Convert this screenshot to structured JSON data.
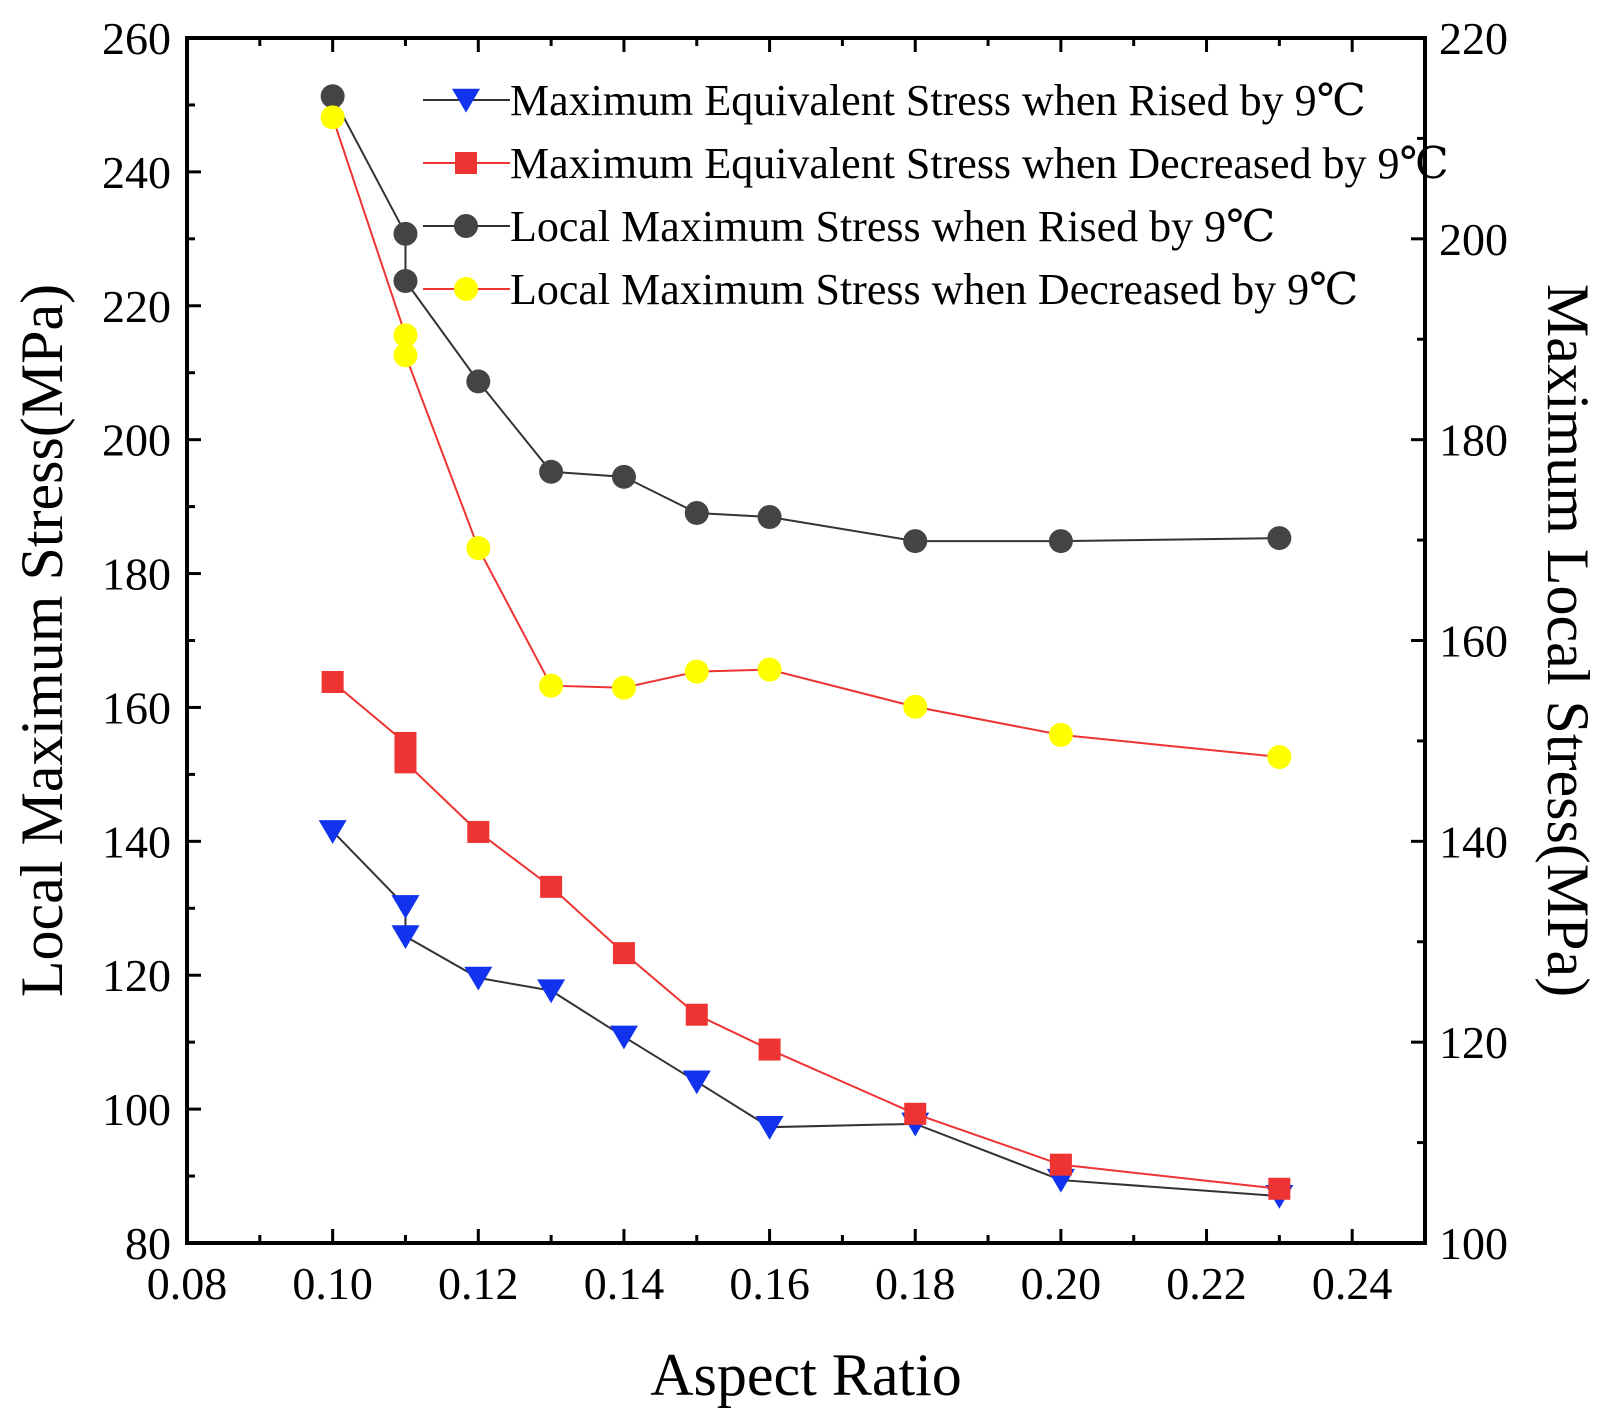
{
  "chart_data": {
    "type": "line",
    "title": "",
    "xlabel": "Aspect Ratio",
    "ylabel_left": "Local Maximum Stress(MPa)",
    "ylabel_right": "Maximum Local Stress(MPa)",
    "xlim": [
      0.08,
      0.25
    ],
    "ylim_left": [
      80,
      260
    ],
    "ylim_right": [
      100,
      220
    ],
    "x_ticks": [
      "0.08",
      "0.10",
      "0.12",
      "0.14",
      "0.16",
      "0.18",
      "0.20",
      "0.22",
      "0.24"
    ],
    "y_ticks_left": [
      "80",
      "100",
      "120",
      "140",
      "160",
      "180",
      "200",
      "220",
      "240",
      "260"
    ],
    "y_ticks_right": [
      "100",
      "120",
      "140",
      "160",
      "180",
      "200",
      "220"
    ],
    "legend_position": "top-right",
    "grid": false,
    "series": [
      {
        "name": "Maximum Equivalent Stress when Rised by 9℃",
        "axis": "left",
        "color": "#1133ee",
        "line_color": "#333333",
        "marker": "triangle-down",
        "x": [
          0.1,
          0.11,
          0.11,
          0.12,
          0.13,
          0.14,
          0.15,
          0.16,
          0.18,
          0.2,
          0.23
        ],
        "y": [
          141.5,
          130.3,
          125.8,
          119.6,
          117.7,
          110.8,
          104.1,
          97.3,
          97.8,
          89.4,
          87.0
        ]
      },
      {
        "name": "Maximum Equivalent Stress when Decreased by 9℃",
        "axis": "left",
        "color": "#ee3333",
        "line_color": "#ee3333",
        "marker": "square",
        "x": [
          0.1,
          0.11,
          0.11,
          0.12,
          0.13,
          0.14,
          0.15,
          0.16,
          0.18,
          0.2,
          0.23
        ],
        "y": [
          163.8,
          154.7,
          151.8,
          141.4,
          133.2,
          123.3,
          114.1,
          108.9,
          99.3,
          91.7,
          88.1
        ]
      },
      {
        "name": "Local Maximum Stress when Rised by 9℃",
        "axis": "right",
        "color": "#444444",
        "line_color": "#333333",
        "marker": "circle",
        "x": [
          0.1,
          0.11,
          0.11,
          0.12,
          0.13,
          0.14,
          0.15,
          0.16,
          0.18,
          0.2,
          0.23
        ],
        "y": [
          214.2,
          200.5,
          195.8,
          185.8,
          176.8,
          176.3,
          172.7,
          172.3,
          169.9,
          169.9,
          170.2
        ]
      },
      {
        "name": "Local Maximum Stress when Decreased by 9℃",
        "axis": "right",
        "color": "#ffff00",
        "line_color": "#ee3333",
        "marker": "circle",
        "x": [
          0.1,
          0.11,
          0.11,
          0.12,
          0.13,
          0.14,
          0.15,
          0.16,
          0.18,
          0.2,
          0.23
        ],
        "y": [
          212.1,
          190.4,
          188.4,
          169.2,
          155.5,
          155.3,
          156.9,
          157.1,
          153.4,
          150.6,
          148.4
        ]
      }
    ]
  }
}
